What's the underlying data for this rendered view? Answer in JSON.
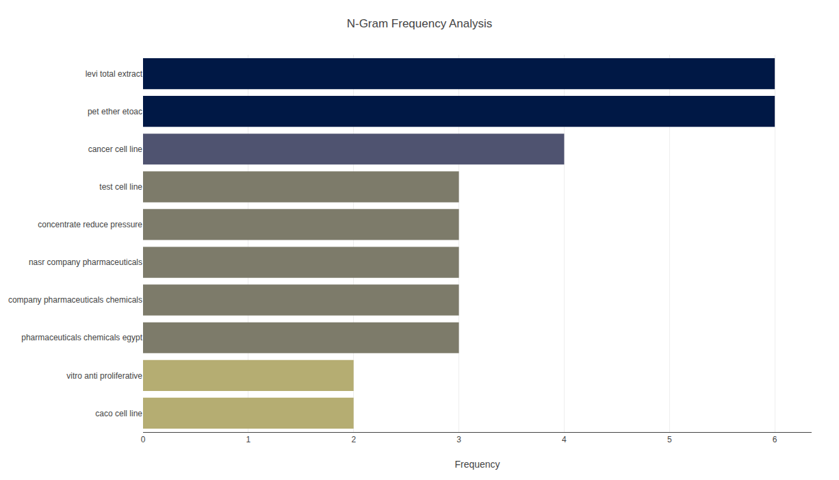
{
  "chart_data": {
    "type": "bar",
    "orientation": "horizontal",
    "title": "N-Gram Frequency Analysis",
    "xlabel": "Frequency",
    "categories": [
      "caco cell line",
      "vitro anti proliferative",
      "pharmaceuticals chemicals egypt",
      "company pharmaceuticals chemicals",
      "nasr company pharmaceuticals",
      "concentrate reduce pressure",
      "test cell line",
      "cancer cell line",
      "pet ether etoac",
      "levi total extract"
    ],
    "values": [
      2,
      2,
      3,
      3,
      3,
      3,
      3,
      4,
      6,
      6
    ],
    "colors": [
      "#b5ad72",
      "#b5ad72",
      "#7d7b6a",
      "#7d7b6a",
      "#7d7b6a",
      "#7d7b6a",
      "#7d7b6a",
      "#4f5370",
      "#001845",
      "#001845"
    ],
    "xlim": [
      0,
      6.35
    ],
    "xticks": [
      0,
      1,
      2,
      3,
      4,
      5,
      6
    ],
    "grid": true
  }
}
